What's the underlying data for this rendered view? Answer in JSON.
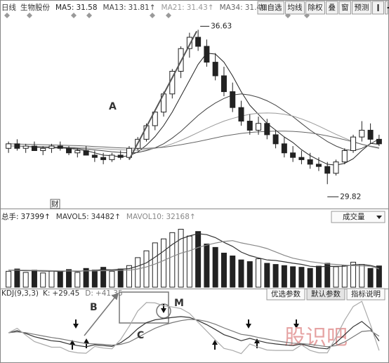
{
  "toolbar": [
    "加自选",
    "均线",
    "除权",
    "叠",
    "窗",
    "预测"
  ],
  "watermark": "股识吧",
  "chart_data": [
    {
      "type": "candlestick",
      "period": "日线",
      "title": "生物股份",
      "open": [
        31.4,
        31.6,
        31.4,
        31.5,
        31.3,
        31.4,
        31.5,
        31.4,
        31.2,
        31.3,
        31.1,
        31.0,
        30.9,
        31.1,
        31.0,
        31.4,
        31.8,
        32.4,
        33.0,
        33.8,
        34.8,
        35.8,
        36.3,
        35.9,
        35.2,
        34.6,
        33.9,
        33.2,
        32.6,
        32.2,
        32.5,
        32.0,
        31.6,
        31.2,
        31.0,
        30.9,
        30.7,
        30.6,
        30.3,
        30.8,
        31.3,
        31.9,
        32.2,
        31.8
      ],
      "high": [
        31.7,
        31.8,
        31.6,
        31.7,
        31.5,
        31.6,
        31.7,
        31.5,
        31.4,
        31.5,
        31.3,
        31.2,
        31.2,
        31.3,
        31.5,
        31.9,
        32.5,
        33.1,
        33.9,
        34.9,
        35.9,
        36.5,
        36.63,
        36.2,
        35.6,
        35.0,
        34.3,
        33.5,
        32.9,
        32.8,
        32.7,
        32.2,
        31.9,
        31.5,
        31.3,
        31.2,
        31.0,
        30.8,
        30.9,
        31.4,
        32.0,
        32.6,
        32.5,
        32.0
      ],
      "low": [
        31.2,
        31.3,
        31.2,
        31.3,
        31.1,
        31.2,
        31.3,
        31.1,
        31.0,
        31.1,
        30.8,
        30.7,
        30.8,
        30.9,
        30.9,
        31.3,
        31.7,
        32.2,
        32.8,
        33.6,
        34.5,
        35.4,
        35.7,
        35.0,
        34.4,
        33.7,
        33.0,
        32.4,
        32.0,
        32.0,
        31.8,
        31.4,
        31.0,
        30.8,
        30.7,
        30.5,
        30.4,
        29.82,
        30.2,
        30.7,
        31.2,
        31.7,
        31.6,
        31.5
      ],
      "close": [
        31.6,
        31.4,
        31.5,
        31.3,
        31.4,
        31.5,
        31.4,
        31.2,
        31.3,
        31.1,
        31.0,
        30.9,
        31.1,
        31.0,
        31.4,
        31.8,
        32.4,
        33.0,
        33.8,
        34.8,
        35.8,
        36.3,
        35.9,
        35.2,
        34.6,
        33.9,
        33.2,
        32.6,
        32.2,
        32.5,
        32.0,
        31.6,
        31.2,
        31.0,
        30.9,
        30.7,
        30.6,
        30.3,
        30.8,
        31.3,
        31.9,
        32.2,
        31.8,
        31.6
      ],
      "up_color": "#ffffff",
      "down_color": "#222222",
      "outline_color": "#222222",
      "series": [
        {
          "name": "MA5:",
          "color": "#222222",
          "values": [
            31.5,
            31.5,
            31.5,
            31.45,
            31.44,
            31.42,
            31.42,
            31.4,
            31.36,
            31.3,
            31.2,
            31.1,
            31.08,
            31.02,
            31.08,
            31.24,
            31.54,
            31.92,
            32.4,
            33.0,
            33.7,
            34.4,
            35.1,
            35.6,
            35.56,
            35.2,
            34.6,
            33.9,
            33.3,
            32.9,
            32.5,
            32.2,
            31.9,
            31.66,
            31.34,
            31.08,
            30.88,
            30.7,
            30.66,
            30.74,
            30.94,
            31.3,
            31.62,
            31.58
          ]
        },
        {
          "name": "MA13:",
          "color": "#444444",
          "arrow": "↑",
          "values": [
            31.5,
            31.5,
            31.48,
            31.46,
            31.45,
            31.44,
            31.43,
            31.42,
            31.4,
            31.37,
            31.33,
            31.29,
            31.25,
            31.22,
            31.2,
            31.22,
            31.3,
            31.42,
            31.6,
            31.85,
            32.15,
            32.5,
            32.85,
            33.15,
            33.4,
            33.6,
            33.75,
            33.8,
            33.75,
            33.65,
            33.5,
            33.3,
            33.05,
            32.8,
            32.5,
            32.2,
            31.95,
            31.7,
            31.5,
            31.35,
            31.3,
            31.4,
            31.6,
            31.81
          ]
        },
        {
          "name": "MA21:",
          "color": "#999999",
          "arrow": "↑",
          "values": [
            31.5,
            31.5,
            31.5,
            31.49,
            31.48,
            31.47,
            31.46,
            31.45,
            31.44,
            31.42,
            31.4,
            31.38,
            31.36,
            31.34,
            31.32,
            31.32,
            31.35,
            31.4,
            31.48,
            31.6,
            31.75,
            31.92,
            32.1,
            32.28,
            32.45,
            32.6,
            32.72,
            32.82,
            32.9,
            32.95,
            32.96,
            32.95,
            32.9,
            32.82,
            32.7,
            32.55,
            32.38,
            32.2,
            32.02,
            31.85,
            31.7,
            31.58,
            31.5,
            31.43
          ]
        },
        {
          "name": "MA34:",
          "color": "#666666",
          "values": [
            31.6,
            31.59,
            31.58,
            31.57,
            31.56,
            31.55,
            31.54,
            31.53,
            31.52,
            31.5,
            31.48,
            31.46,
            31.44,
            31.42,
            31.41,
            31.4,
            31.4,
            31.42,
            31.45,
            31.5,
            31.56,
            31.63,
            31.7,
            31.78,
            31.86,
            31.94,
            32.0,
            32.06,
            32.1,
            32.13,
            32.15,
            32.16,
            32.16,
            32.15,
            32.12,
            32.08,
            32.02,
            31.95,
            31.87,
            31.78,
            31.68,
            31.58,
            31.48,
            31.4
          ],
          "value_labels": [
            null,
            null,
            null,
            null,
            null,
            null,
            null,
            null,
            null,
            null,
            null,
            null,
            null,
            null,
            null,
            null,
            null,
            null,
            null,
            null,
            null,
            null,
            null,
            null,
            null,
            null,
            null,
            null,
            null,
            null,
            null,
            null,
            null,
            null,
            null,
            null,
            null,
            null,
            null,
            null,
            null,
            null,
            null,
            "31.40"
          ]
        }
      ],
      "ylim": [
        28.9,
        37.2
      ],
      "annotations": [
        "A",
        "财"
      ]
    },
    {
      "type": "bar",
      "dropdown": "成交量",
      "series": [
        {
          "name": "总手:",
          "color": "#222222",
          "arrow": "↑",
          "values": [
            28000,
            32000,
            26000,
            30000,
            25000,
            29000,
            27000,
            31000,
            26000,
            33000,
            30000,
            35000,
            28000,
            32000,
            38000,
            52000,
            64000,
            78000,
            85000,
            96000,
            102000,
            90000,
            98000,
            76000,
            70000,
            60000,
            55000,
            48000,
            45000,
            50000,
            42000,
            40000,
            38000,
            36000,
            35000,
            33000,
            37000,
            42000,
            36000,
            38000,
            44000,
            40000,
            33000,
            37399
          ]
        },
        {
          "name": "MAVOL5:",
          "type": "line",
          "color": "#333333",
          "arrow": "↑",
          "values": [
            30000,
            29500,
            29000,
            29000,
            28200,
            28400,
            27400,
            28800,
            27600,
            29200,
            29400,
            31000,
            30400,
            31600,
            32600,
            37000,
            42800,
            52800,
            63400,
            75000,
            85000,
            90200,
            94200,
            92400,
            87200,
            78800,
            71800,
            61800,
            55600,
            51600,
            48000,
            47000,
            44600,
            42200,
            40200,
            36800,
            35800,
            36600,
            36600,
            36800,
            39400,
            40000,
            38200,
            34482
          ]
        },
        {
          "name": "MAVOL10:",
          "type": "line",
          "color": "#888888",
          "arrow": "↑",
          "values": [
            30000,
            30000,
            29800,
            29600,
            29400,
            29000,
            28700,
            28600,
            28400,
            28700,
            28700,
            29000,
            29000,
            29500,
            29900,
            32000,
            35600,
            40700,
            46900,
            53800,
            59800,
            64000,
            70000,
            74000,
            77600,
            80400,
            82000,
            78000,
            75000,
            72000,
            68000,
            62000,
            56000,
            51000,
            48000,
            45000,
            43000,
            41000,
            40000,
            38800,
            37800,
            37500,
            37000,
            32168
          ]
        }
      ],
      "ylim": [
        0,
        110000
      ]
    },
    {
      "type": "line",
      "title": "KDJ(9,3,3)",
      "buttons": [
        "优选参数",
        "默认参数",
        "指标说明"
      ],
      "series": [
        {
          "name": "K:",
          "color": "#333333",
          "values": [
            50,
            55,
            48,
            40,
            35,
            30,
            28,
            22,
            18,
            15,
            20,
            18,
            16,
            25,
            40,
            60,
            75,
            82,
            85,
            88,
            90,
            88,
            80,
            70,
            58,
            45,
            38,
            30,
            36,
            30,
            25,
            22,
            20,
            18,
            22,
            16,
            12,
            10,
            25,
            45,
            65,
            78,
            60,
            29.45
          ],
          "value_labels": [
            null,
            null,
            null,
            null,
            null,
            null,
            null,
            null,
            null,
            null,
            null,
            null,
            null,
            null,
            null,
            null,
            null,
            null,
            null,
            null,
            null,
            null,
            null,
            null,
            null,
            null,
            null,
            null,
            null,
            null,
            null,
            null,
            null,
            null,
            null,
            null,
            null,
            null,
            null,
            null,
            null,
            null,
            null,
            "+29.45"
          ]
        },
        {
          "name": "D:",
          "color": "#777777",
          "values": [
            50,
            52,
            50,
            46,
            42,
            38,
            35,
            31,
            27,
            23,
            22,
            21,
            19,
            21,
            27,
            38,
            50,
            61,
            69,
            75,
            80,
            83,
            82,
            78,
            71,
            62,
            54,
            46,
            43,
            38,
            34,
            30,
            27,
            24,
            23,
            21,
            18,
            15,
            18,
            27,
            40,
            53,
            55,
            41.35
          ],
          "value_labels": [
            null,
            null,
            null,
            null,
            null,
            null,
            null,
            null,
            null,
            null,
            null,
            null,
            null,
            null,
            null,
            null,
            null,
            null,
            null,
            null,
            null,
            null,
            null,
            null,
            null,
            null,
            null,
            null,
            null,
            null,
            null,
            null,
            null,
            null,
            null,
            null,
            null,
            null,
            null,
            null,
            null,
            null,
            null,
            "+41.35"
          ]
        },
        {
          "color": "#aaaaaa",
          "values": [
            50,
            61,
            44,
            28,
            21,
            14,
            14,
            4,
            0,
            -1,
            16,
            12,
            10,
            33,
            66,
            104,
            125,
            124,
            117,
            114,
            110,
            98,
            76,
            54,
            32,
            11,
            6,
            -2,
            22,
            14,
            7,
            6,
            6,
            6,
            20,
            6,
            0,
            0,
            39,
            81,
            115,
            128,
            70,
            5.75
          ]
        }
      ],
      "ylim": [
        -20,
        130
      ],
      "annotations": [
        "B",
        "C",
        "M"
      ]
    }
  ]
}
